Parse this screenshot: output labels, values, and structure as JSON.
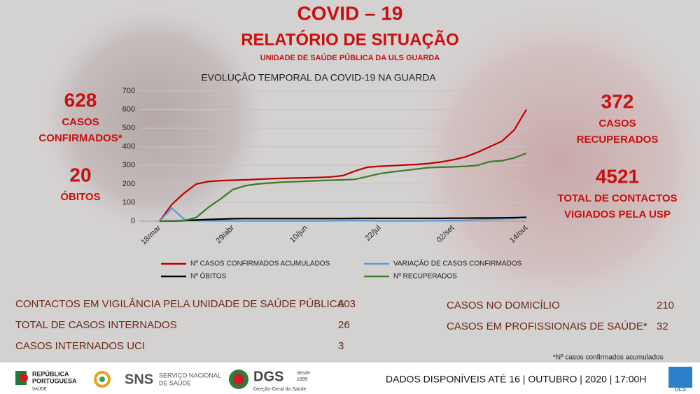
{
  "header": {
    "title": "COVID – 19",
    "subtitle": "RELATÓRIO DE SITUAÇÃO",
    "unit": "UNIDADE DE SAÚDE PÚBLICA DA ULS GUARDA"
  },
  "stats": {
    "left": [
      {
        "value": "628",
        "lines": [
          "CASOS",
          "CONFIRMADOS*"
        ]
      },
      {
        "value": "20",
        "lines": [
          "ÓBITOS"
        ]
      }
    ],
    "right": [
      {
        "value": "372",
        "lines": [
          "CASOS",
          "RECUPERADOS"
        ]
      },
      {
        "value": "4521",
        "lines": [
          "TOTAL DE CONTACTOS",
          "VIGIADOS PELA USP"
        ]
      }
    ]
  },
  "chart_data": {
    "type": "line",
    "title": "EVOLUÇÃO TEMPORAL DA COVID-19 NA GUARDA",
    "categories": [
      "18/mar",
      null,
      null,
      null,
      null,
      null,
      "29/abr",
      null,
      null,
      null,
      null,
      null,
      "10/jun",
      null,
      null,
      null,
      null,
      null,
      "22/jul",
      null,
      null,
      null,
      null,
      null,
      "02/set",
      null,
      null,
      null,
      null,
      null,
      "14/out"
    ],
    "series": [
      {
        "name": "Nº CASOS CONFIRMADOS ACUMULADOS",
        "color": "#c00000",
        "values": [
          0,
          90,
          150,
          200,
          213,
          218,
          220,
          222,
          225,
          228,
          230,
          232,
          233,
          235,
          238,
          245,
          270,
          290,
          295,
          298,
          302,
          305,
          310,
          318,
          330,
          345,
          370,
          400,
          430,
          490,
          600
        ]
      },
      {
        "name": "VARIAÇÃO DE CASOS CONFIRMADOS",
        "color": "#5b9bd5",
        "values": [
          0,
          70,
          10,
          3,
          2,
          1,
          1,
          1,
          1,
          1,
          1,
          1,
          1,
          1,
          2,
          3,
          5,
          3,
          1,
          1,
          2,
          1,
          2,
          3,
          4,
          5,
          8,
          10,
          12,
          15,
          25
        ]
      },
      {
        "name": "Nº ÓBITOS",
        "color": "#000000",
        "values": [
          0,
          1,
          3,
          6,
          9,
          11,
          13,
          14,
          14,
          14,
          14,
          14,
          14,
          14,
          14,
          14,
          15,
          15,
          15,
          15,
          15,
          15,
          15,
          15,
          16,
          16,
          17,
          17,
          18,
          19,
          20
        ]
      },
      {
        "name": "Nº RECUPERADOS",
        "color": "#3a7d22",
        "values": [
          0,
          0,
          2,
          20,
          75,
          120,
          170,
          190,
          200,
          205,
          210,
          212,
          215,
          218,
          220,
          222,
          225,
          240,
          255,
          265,
          272,
          280,
          288,
          290,
          292,
          295,
          300,
          320,
          325,
          340,
          365
        ]
      }
    ],
    "ylim": [
      0,
      700
    ],
    "yticks": [
      0,
      100,
      200,
      300,
      400,
      500,
      600,
      700
    ],
    "grid": true,
    "legend": "bottom"
  },
  "table": {
    "left": [
      [
        "CONTACTOS EM VIGILÂNCIA PELA UNIDADE DE SAÚDE PÚBLICA",
        "603"
      ],
      [
        "TOTAL DE CASOS INTERNADOS",
        "26"
      ],
      [
        "CASOS INTERNADOS UCI",
        "3"
      ]
    ],
    "right": [
      [
        "CASOS NO DOMICÍLIO",
        "210"
      ],
      [
        "CASOS EM PROFISSIONAIS DE SAÚDE*",
        "32"
      ]
    ],
    "note": "*Nº casos confirmados acumulados"
  },
  "footer": {
    "republica": [
      "REPÚBLICA",
      "PORTUGUESA",
      "SAÚDE"
    ],
    "sns": [
      "SNS",
      "SERVIÇO NACIONAL",
      "DE SAÚDE"
    ],
    "dgs": [
      "DGS",
      "desde",
      "1899",
      "Direção-Geral da Saúde"
    ],
    "date": "DADOS DISPONÍVEIS ATÉ 16 | OUTUBRO | 2020 | 17:00H",
    "uls": "ULS"
  }
}
